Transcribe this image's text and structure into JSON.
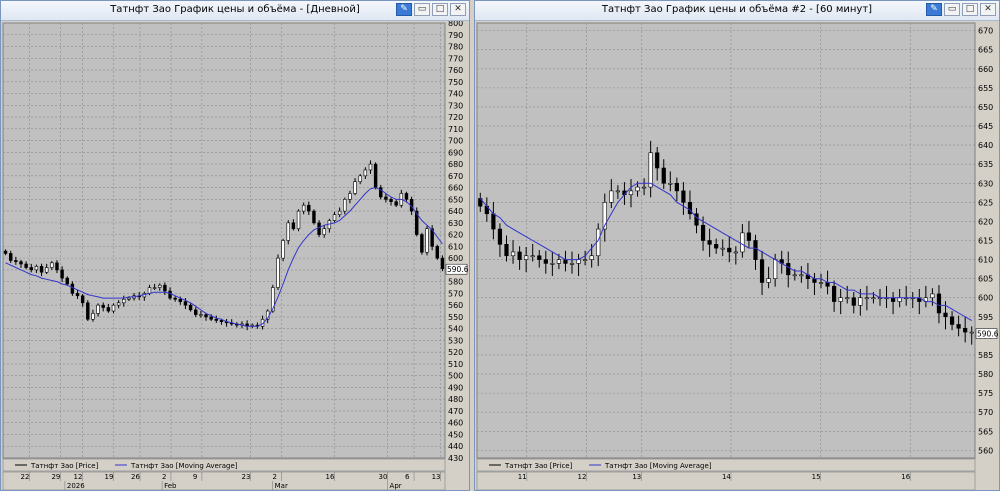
{
  "windows": [
    {
      "title": "Татнфт Зао График цены и объёма - [Дневной]",
      "buttons": {
        "pin": "✎",
        "min": "▭",
        "max": "□",
        "close": "✕"
      },
      "chart_data": {
        "type": "candlestick",
        "ylim": [
          430,
          800
        ],
        "ytick_step": 10,
        "last_price_label": "590.6",
        "legend": [
          {
            "name": "Татнфт Зао [Price]",
            "color": "#000000"
          },
          {
            "name": "Татнфт Зао [Moving Average]",
            "color": "#3333cc"
          }
        ],
        "xticks_top": [
          "22",
          "29",
          "12",
          "19",
          "26",
          "2",
          "9",
          "23",
          "2",
          "16",
          "30",
          "6",
          "13"
        ],
        "xticks_top_pos": [
          0.06,
          0.13,
          0.18,
          0.25,
          0.31,
          0.38,
          0.45,
          0.56,
          0.63,
          0.75,
          0.87,
          0.93,
          0.99
        ],
        "xticks_bottom": [
          "2026",
          "Feb",
          "Mar",
          "Apr"
        ],
        "xticks_bottom_pos": [
          0.14,
          0.36,
          0.61,
          0.87
        ],
        "close": [
          604,
          598,
          597,
          595,
          592,
          590,
          593,
          588,
          592,
          596,
          590,
          583,
          578,
          570,
          568,
          562,
          548,
          553,
          560,
          558,
          555,
          560,
          562,
          565,
          566,
          568,
          567,
          570,
          575,
          575,
          577,
          572,
          566,
          565,
          563,
          560,
          556,
          552,
          552,
          550,
          548,
          547,
          546,
          545,
          544,
          543,
          544,
          542,
          543,
          542,
          548,
          555,
          575,
          600,
          615,
          630,
          625,
          640,
          645,
          640,
          630,
          620,
          625,
          632,
          637,
          640,
          650,
          655,
          665,
          670,
          675,
          680,
          660,
          652,
          650,
          648,
          645,
          655,
          650,
          640,
          620,
          605,
          625,
          610,
          600,
          591
        ],
        "ma": [
          596,
          594,
          592,
          590,
          588,
          586,
          585,
          583,
          582,
          581,
          580,
          578,
          577,
          575,
          573,
          571,
          569,
          568,
          567,
          566,
          566,
          566,
          566,
          566,
          567,
          567,
          568,
          569,
          570,
          571,
          571,
          571,
          570,
          568,
          566,
          564,
          562,
          559,
          556,
          553,
          551,
          549,
          548,
          546,
          545,
          544,
          543,
          542,
          542,
          542,
          544,
          549,
          557,
          567,
          578,
          590,
          600,
          609,
          615,
          620,
          624,
          626,
          628,
          629,
          630,
          632,
          636,
          640,
          645,
          650,
          655,
          659,
          660,
          658,
          655,
          652,
          650,
          650,
          648,
          644,
          638,
          632,
          628,
          624,
          618,
          612
        ]
      }
    },
    {
      "title": "Татнфт Зао График цены и объёма #2 - [60 минут]",
      "buttons": {
        "pin": "✎",
        "min": "▭",
        "max": "□",
        "close": "✕"
      },
      "chart_data": {
        "type": "candlestick",
        "ylim": [
          558,
          672
        ],
        "ytick_step": 5,
        "last_price_label": "590.6",
        "legend": [
          {
            "name": "Татнфт Зао [Price]",
            "color": "#000000"
          },
          {
            "name": "Татнфт Зао [Moving Average]",
            "color": "#3333cc"
          }
        ],
        "xticks_top": [
          "11",
          "12",
          "13",
          "14",
          "15",
          "16"
        ],
        "xticks_top_pos": [
          0.1,
          0.22,
          0.33,
          0.51,
          0.69,
          0.87
        ],
        "xticks_bottom": [],
        "xticks_bottom_pos": [],
        "close": [
          624,
          622,
          618,
          614,
          611,
          612,
          610,
          611,
          611,
          610,
          609,
          609,
          610,
          609,
          609,
          610,
          610,
          611,
          618,
          625,
          628,
          628,
          627,
          628,
          629,
          629,
          638,
          634,
          630,
          630,
          628,
          625,
          622,
          619,
          615,
          614,
          613,
          613,
          612,
          612,
          617,
          615,
          610,
          604,
          605,
          610,
          609,
          606,
          606,
          606,
          605,
          604,
          604,
          603,
          599,
          600,
          600,
          598,
          600,
          600,
          600,
          600,
          600,
          599,
          600,
          600,
          600,
          599,
          600,
          601,
          596,
          595,
          593,
          592,
          591,
          591
        ],
        "ma": [
          626,
          624,
          622,
          621,
          619,
          618,
          617,
          616,
          615,
          614,
          613,
          612,
          611,
          610,
          610,
          610,
          611,
          613,
          615,
          619,
          622,
          625,
          627,
          629,
          630,
          630,
          630,
          629,
          628,
          627,
          625,
          624,
          623,
          621,
          620,
          619,
          618,
          617,
          616,
          615,
          614,
          613,
          613,
          612,
          611,
          610,
          609,
          608,
          607,
          607,
          606,
          605,
          605,
          604,
          604,
          603,
          602,
          602,
          601,
          601,
          601,
          600,
          600,
          600,
          600,
          600,
          600,
          600,
          599,
          599,
          598,
          598,
          597,
          596,
          595,
          594
        ]
      }
    }
  ]
}
